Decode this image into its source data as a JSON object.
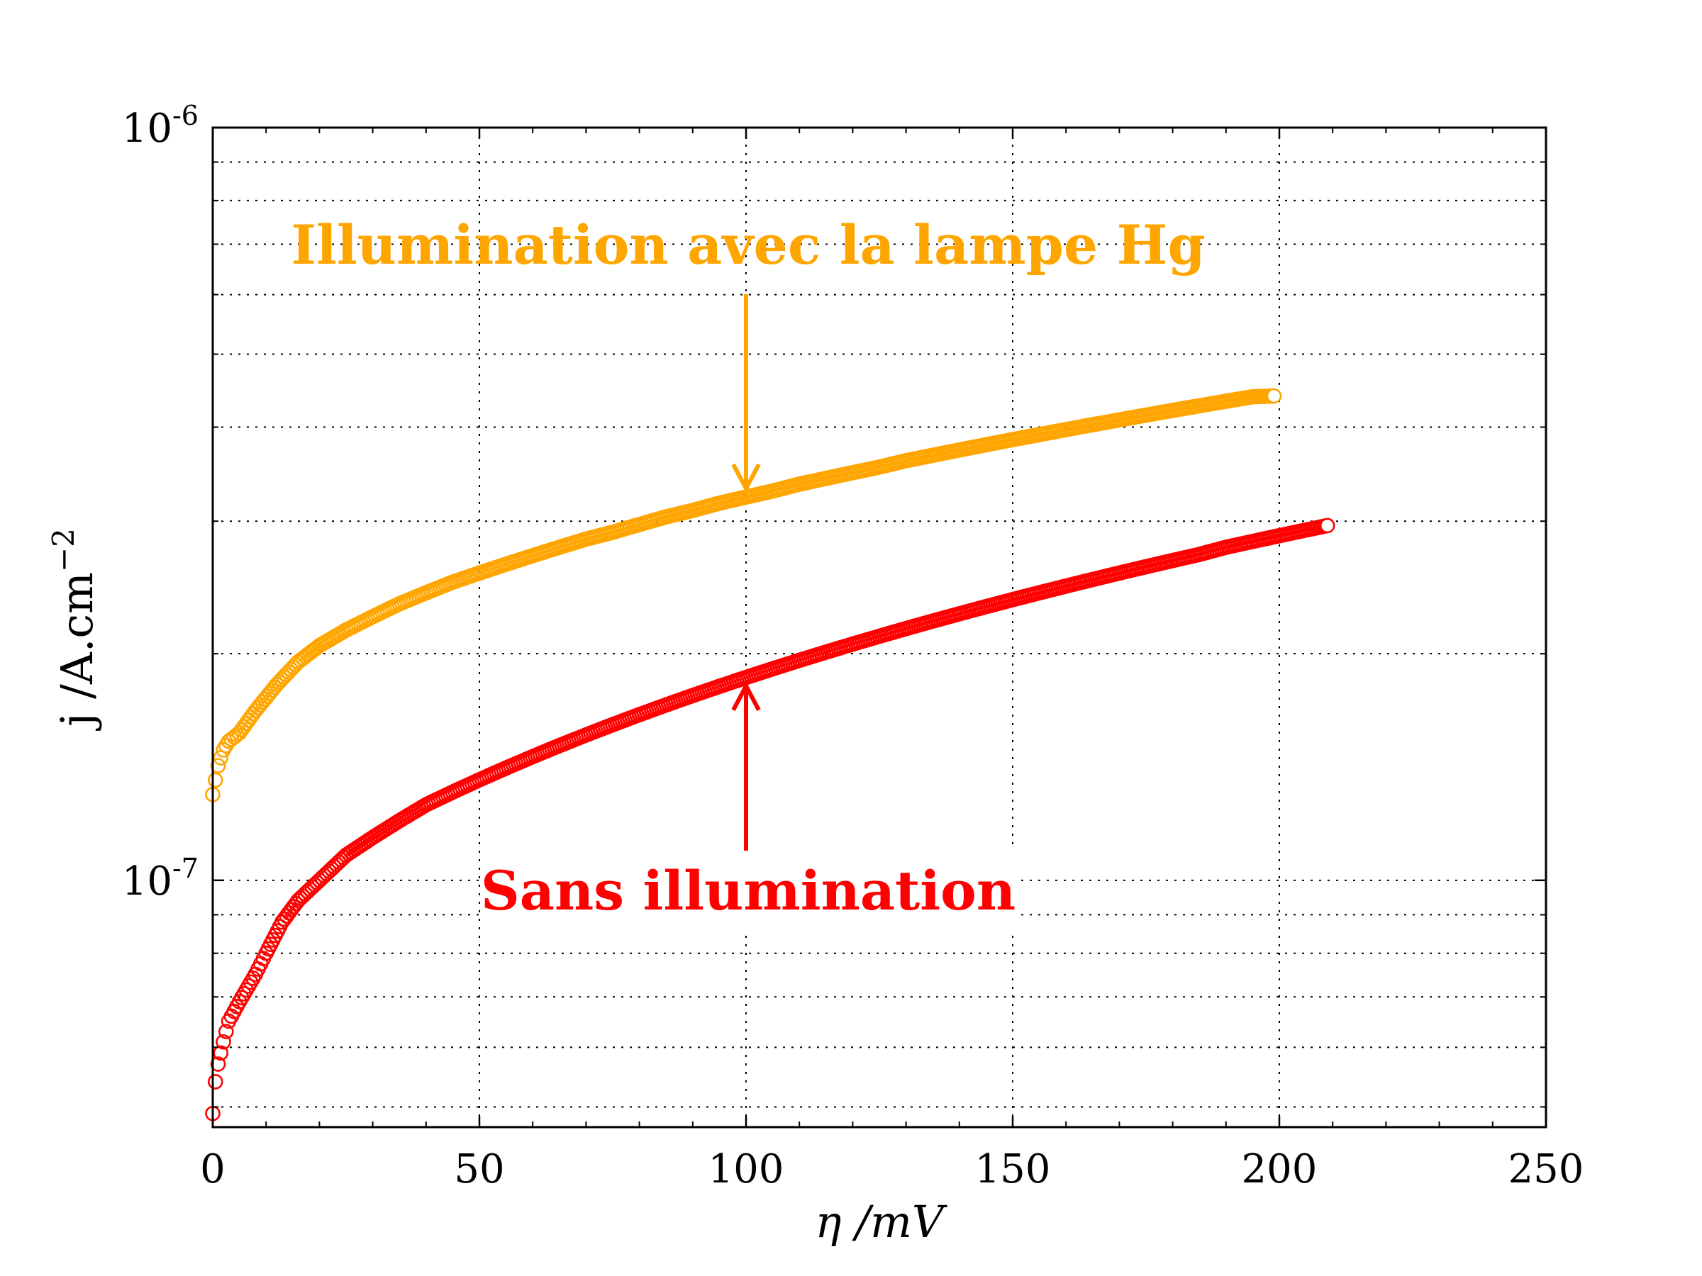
{
  "chart_data": {
    "type": "scatter",
    "title": "",
    "xlabel": "η /mV",
    "ylabel_parts": {
      "main": "j /A.cm",
      "sup": "−2"
    },
    "xlim": [
      0,
      250
    ],
    "ylim": [
      4.7e-08,
      1e-06
    ],
    "yscale": "log",
    "grid": true,
    "x_ticks": [
      {
        "value": 0,
        "label": "0"
      },
      {
        "value": 50,
        "label": "50"
      },
      {
        "value": 100,
        "label": "100"
      },
      {
        "value": 150,
        "label": "150"
      },
      {
        "value": 200,
        "label": "200"
      },
      {
        "value": 250,
        "label": "250"
      }
    ],
    "y_ticks": [
      {
        "value": 1e-06,
        "base": "10",
        "exp": "-6"
      },
      {
        "value": 1e-07,
        "base": "10",
        "exp": "-7"
      }
    ],
    "series": [
      {
        "name": "Illumination avec la lampe Hg",
        "color": "#FFA500",
        "x": [
          0,
          1,
          2,
          3,
          5,
          8,
          12,
          16,
          20,
          25,
          30,
          35,
          40,
          45,
          50,
          55,
          60,
          65,
          70,
          75,
          80,
          85,
          90,
          95,
          100,
          105,
          110,
          115,
          120,
          125,
          130,
          135,
          140,
          145,
          150,
          155,
          160,
          165,
          170,
          175,
          180,
          185,
          190,
          195,
          199
        ],
        "y": [
          1.3e-07,
          1.42e-07,
          1.49e-07,
          1.53e-07,
          1.57e-07,
          1.68e-07,
          1.82e-07,
          1.95e-07,
          2.05e-07,
          2.15e-07,
          2.24e-07,
          2.33e-07,
          2.41e-07,
          2.49e-07,
          2.56e-07,
          2.63e-07,
          2.7e-07,
          2.77e-07,
          2.84e-07,
          2.9e-07,
          2.97e-07,
          3.04e-07,
          3.1e-07,
          3.17e-07,
          3.23e-07,
          3.29e-07,
          3.36e-07,
          3.42e-07,
          3.48e-07,
          3.54e-07,
          3.61e-07,
          3.67e-07,
          3.73e-07,
          3.79e-07,
          3.85e-07,
          3.91e-07,
          3.97e-07,
          4.03e-07,
          4.09e-07,
          4.15e-07,
          4.21e-07,
          4.27e-07,
          4.33e-07,
          4.39e-07,
          4.4e-07
        ]
      },
      {
        "name": "Sans illumination",
        "color": "#FF0000",
        "x": [
          0,
          0.5,
          1,
          2,
          3,
          5,
          8,
          10,
          13,
          16,
          20,
          25,
          30,
          35,
          40,
          45,
          50,
          55,
          60,
          65,
          70,
          75,
          80,
          85,
          90,
          95,
          100,
          105,
          110,
          115,
          120,
          125,
          130,
          135,
          140,
          145,
          150,
          155,
          160,
          165,
          170,
          175,
          180,
          185,
          190,
          195,
          200,
          205,
          209
        ],
        "y": [
          4.9e-08,
          5.4e-08,
          5.7e-08,
          6.1e-08,
          6.5e-08,
          6.9e-08,
          7.5e-08,
          8e-08,
          8.8e-08,
          9.4e-08,
          1e-07,
          1.08e-07,
          1.14e-07,
          1.2e-07,
          1.26e-07,
          1.31e-07,
          1.36e-07,
          1.41e-07,
          1.46e-07,
          1.51e-07,
          1.56e-07,
          1.61e-07,
          1.66e-07,
          1.71e-07,
          1.76e-07,
          1.81e-07,
          1.86e-07,
          1.91e-07,
          1.96e-07,
          2.01e-07,
          2.06e-07,
          2.11e-07,
          2.16e-07,
          2.21e-07,
          2.26e-07,
          2.31e-07,
          2.36e-07,
          2.41e-07,
          2.46e-07,
          2.51e-07,
          2.56e-07,
          2.61e-07,
          2.66e-07,
          2.71e-07,
          2.77e-07,
          2.82e-07,
          2.87e-07,
          2.92e-07,
          2.96e-07
        ]
      }
    ],
    "annotations": [
      {
        "text": "Illumination avec la lampe Hg",
        "color": "#FFA500",
        "arrow_to": {
          "x": 100,
          "y": 3.23e-07
        }
      },
      {
        "text": "Sans illumination",
        "color": "#FF0000",
        "arrow_to": {
          "x": 100,
          "y": 1.86e-07
        }
      }
    ]
  }
}
